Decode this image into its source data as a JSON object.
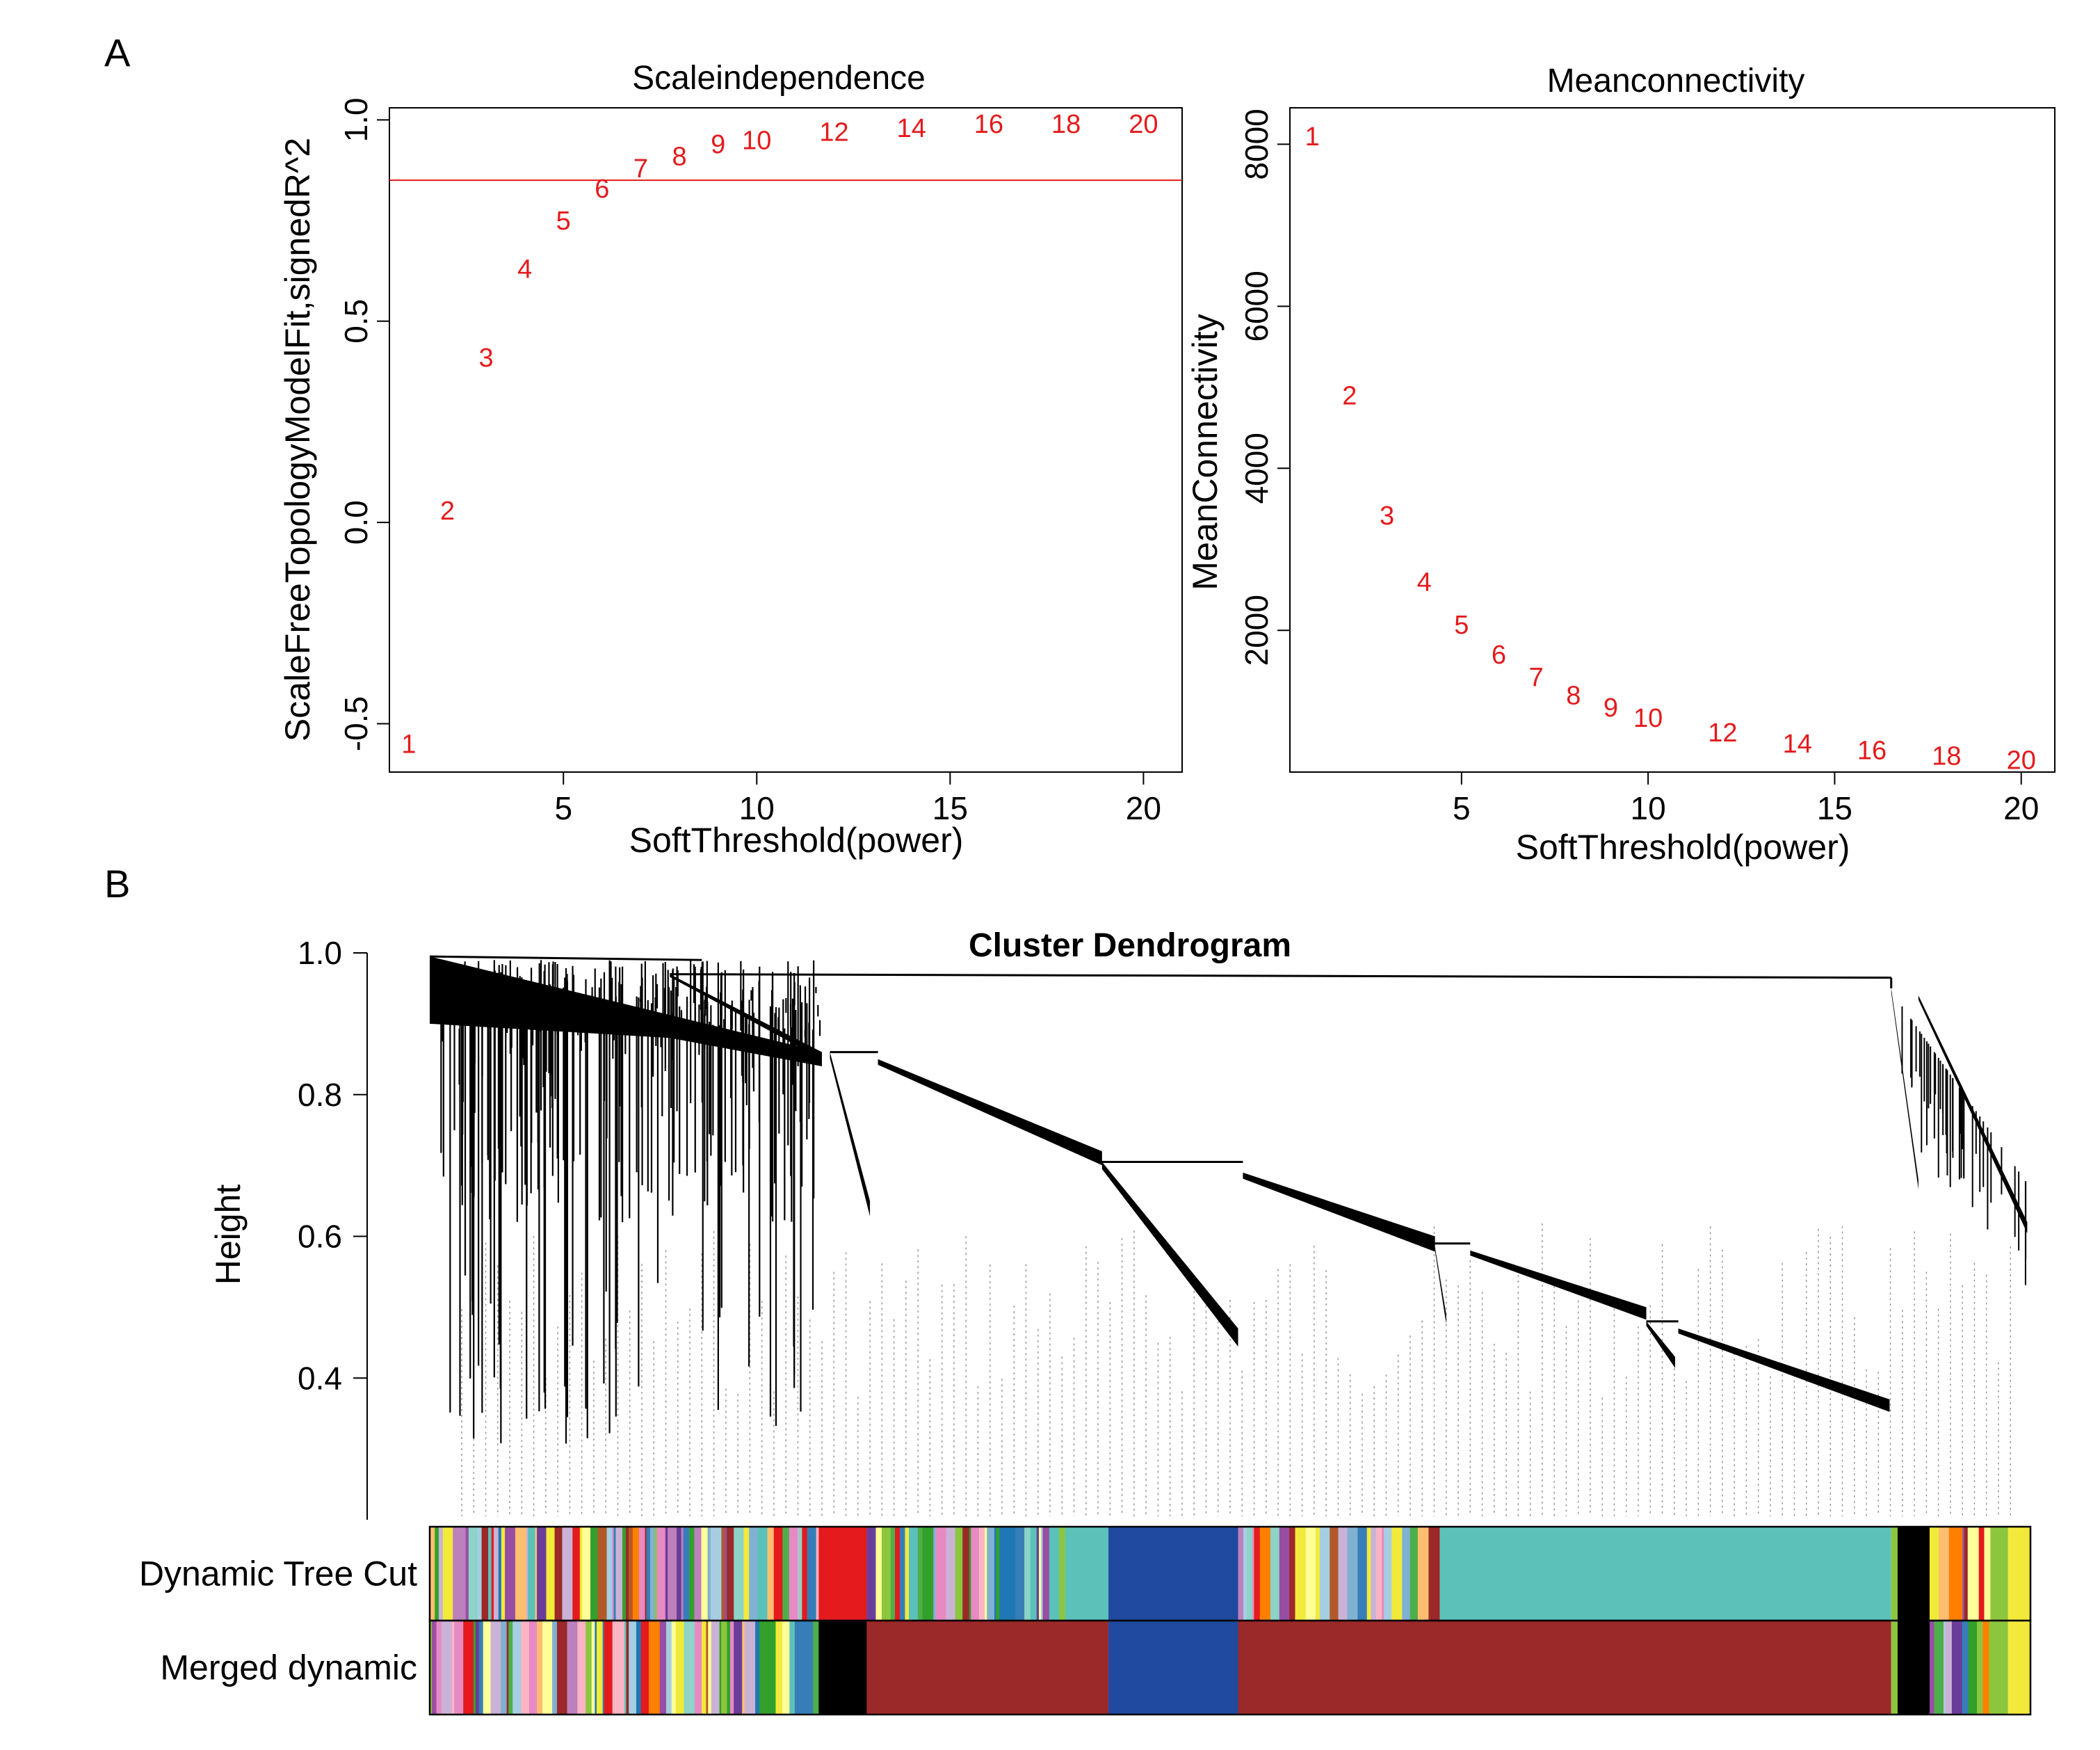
{
  "panels": {
    "a_label": "A",
    "b_label": "B"
  },
  "chart_data": [
    {
      "type": "scatter",
      "title": "Scaleindependence",
      "xlabel": "SoftThreshold(power)",
      "ylabel": "ScaleFreeTopologyModelFit,signedR^2",
      "xlim": [
        0.5,
        21
      ],
      "ylim": [
        -0.62,
        1.03
      ],
      "xticks": [
        5,
        10,
        15,
        20
      ],
      "yticks": [
        -0.5,
        0.0,
        0.5,
        1.0
      ],
      "ytick_labels": [
        "-0.5",
        "0.0",
        "0.5",
        "1.0"
      ],
      "hline": 0.85,
      "hline_color": "#e41a1c",
      "point_color": "#e41a1c",
      "points": [
        {
          "label": "1",
          "x": 1,
          "y": -0.55
        },
        {
          "label": "2",
          "x": 2,
          "y": 0.03
        },
        {
          "label": "3",
          "x": 3,
          "y": 0.41
        },
        {
          "label": "4",
          "x": 4,
          "y": 0.63
        },
        {
          "label": "5",
          "x": 5,
          "y": 0.75
        },
        {
          "label": "6",
          "x": 6,
          "y": 0.83
        },
        {
          "label": "7",
          "x": 7,
          "y": 0.88
        },
        {
          "label": "8",
          "x": 8,
          "y": 0.91
        },
        {
          "label": "9",
          "x": 9,
          "y": 0.94
        },
        {
          "label": "10",
          "x": 10,
          "y": 0.95
        },
        {
          "label": "12",
          "x": 12,
          "y": 0.97
        },
        {
          "label": "14",
          "x": 14,
          "y": 0.98
        },
        {
          "label": "16",
          "x": 16,
          "y": 0.99
        },
        {
          "label": "18",
          "x": 18,
          "y": 0.99
        },
        {
          "label": "20",
          "x": 20,
          "y": 0.99
        }
      ]
    },
    {
      "type": "scatter",
      "title": "Meanconnectivity",
      "xlabel": "SoftThreshold(power)",
      "ylabel": "MeanConnectivity",
      "xlim": [
        0.4,
        20.9
      ],
      "ylim": [
        250,
        8450
      ],
      "xticks": [
        5,
        10,
        15,
        20
      ],
      "yticks": [
        2000,
        4000,
        6000,
        8000
      ],
      "ytick_labels": [
        "2000",
        "4000",
        "6000",
        "8000"
      ],
      "point_color": "#e41a1c",
      "points": [
        {
          "label": "1",
          "x": 1,
          "y": 8100
        },
        {
          "label": "2",
          "x": 2,
          "y": 4900
        },
        {
          "label": "3",
          "x": 3,
          "y": 3420
        },
        {
          "label": "4",
          "x": 4,
          "y": 2600
        },
        {
          "label": "5",
          "x": 5,
          "y": 2070
        },
        {
          "label": "6",
          "x": 6,
          "y": 1700
        },
        {
          "label": "7",
          "x": 7,
          "y": 1420
        },
        {
          "label": "8",
          "x": 8,
          "y": 1200
        },
        {
          "label": "9",
          "x": 9,
          "y": 1050
        },
        {
          "label": "10",
          "x": 10,
          "y": 920
        },
        {
          "label": "12",
          "x": 12,
          "y": 740
        },
        {
          "label": "14",
          "x": 14,
          "y": 600
        },
        {
          "label": "16",
          "x": 16,
          "y": 520
        },
        {
          "label": "18",
          "x": 18,
          "y": 450
        },
        {
          "label": "20",
          "x": 20,
          "y": 400
        }
      ]
    },
    {
      "type": "dendrogram",
      "title": "Cluster Dendrogram",
      "ylabel": "Height",
      "ylim": [
        0.2,
        1.0
      ],
      "yticks": [
        0.4,
        0.6,
        0.8,
        1.0
      ],
      "ytick_labels": [
        "0.4",
        "0.6",
        "0.8",
        "1.0"
      ],
      "branches": [
        {
          "x0": 0.0,
          "x1": 0.25,
          "height": 0.99,
          "leaf_height": 0.4,
          "style": "fan"
        },
        {
          "x0": 0.25,
          "x1": 0.33,
          "top": 0.86,
          "bottom": 0.61,
          "style": "wedge"
        },
        {
          "x0": 0.33,
          "x1": 0.508,
          "top": 0.86,
          "bottom": 0.71,
          "style": "slope"
        },
        {
          "x0": 0.508,
          "x1": 0.508,
          "top": 0.705,
          "bottom": 0.46,
          "style": "wedge"
        },
        {
          "x0": 0.508,
          "x1": 0.65,
          "top": 0.705,
          "bottom": 0.58,
          "style": "slope"
        },
        {
          "x0": 0.65,
          "x1": 0.65,
          "top": 0.59,
          "bottom": 0.47,
          "style": "wedge"
        },
        {
          "x0": 0.65,
          "x1": 0.78,
          "top": 0.59,
          "bottom": 0.42,
          "style": "slope"
        },
        {
          "x0": 0.78,
          "x1": 0.915,
          "top": 0.48,
          "bottom": 0.36,
          "style": "slope"
        },
        {
          "x0": 0.915,
          "x1": 1.0,
          "top": 0.97,
          "bottom": 0.6,
          "style": "fan"
        }
      ],
      "color_rows": [
        {
          "label": "Dynamic Tree Cut",
          "segments": [
            {
              "start": 0.0,
              "end": 0.243,
              "color": "mixed"
            },
            {
              "start": 0.243,
              "end": 0.273,
              "color": "#e41a1c"
            },
            {
              "start": 0.273,
              "end": 0.397,
              "color": "mixed"
            },
            {
              "start": 0.397,
              "end": 0.424,
              "color": "#5cc2b9"
            },
            {
              "start": 0.424,
              "end": 0.505,
              "color": "#1f4aa0"
            },
            {
              "start": 0.505,
              "end": 0.624,
              "color": "mixed"
            },
            {
              "start": 0.624,
              "end": 0.631,
              "color": "#9b2929"
            },
            {
              "start": 0.631,
              "end": 0.913,
              "color": "#5cc2b9"
            },
            {
              "start": 0.913,
              "end": 0.917,
              "color": "#8cc63e"
            },
            {
              "start": 0.917,
              "end": 0.937,
              "color": "#000000"
            },
            {
              "start": 0.937,
              "end": 0.975,
              "color": "mixed"
            },
            {
              "start": 0.975,
              "end": 0.986,
              "color": "#8cc63e"
            },
            {
              "start": 0.986,
              "end": 1.0,
              "color": "#f2ea3a"
            }
          ]
        },
        {
          "label": "Merged dynamic",
          "segments": [
            {
              "start": 0.0,
              "end": 0.243,
              "color": "mixed"
            },
            {
              "start": 0.243,
              "end": 0.273,
              "color": "#000000"
            },
            {
              "start": 0.273,
              "end": 0.424,
              "color": "#9b2929"
            },
            {
              "start": 0.424,
              "end": 0.505,
              "color": "#1f4aa0"
            },
            {
              "start": 0.505,
              "end": 0.913,
              "color": "#9b2929"
            },
            {
              "start": 0.913,
              "end": 0.917,
              "color": "#8cc63e"
            },
            {
              "start": 0.917,
              "end": 0.937,
              "color": "#000000"
            },
            {
              "start": 0.937,
              "end": 0.975,
              "color": "mixed"
            },
            {
              "start": 0.975,
              "end": 0.986,
              "color": "#8cc63e"
            },
            {
              "start": 0.986,
              "end": 1.0,
              "color": "#f2ea3a"
            }
          ]
        }
      ]
    }
  ]
}
